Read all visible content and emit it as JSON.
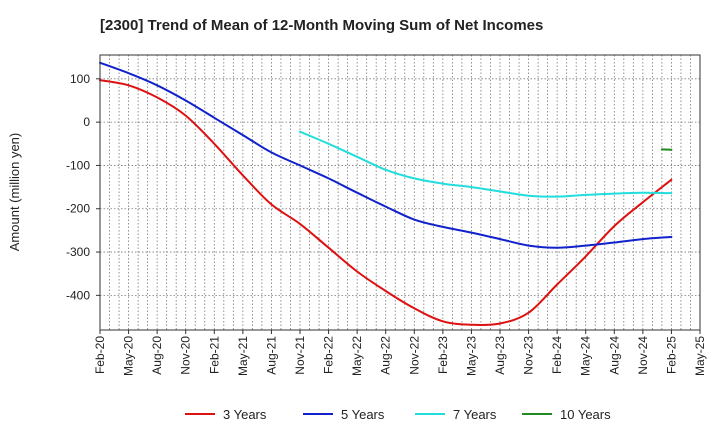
{
  "chart_data": {
    "type": "line",
    "title": "[2300]  Trend of Mean of 12-Month Moving Sum of Net Incomes",
    "xlabel": "",
    "ylabel": "Amount (million yen)",
    "ylim": [
      -480,
      155
    ],
    "yticks": [
      100,
      0,
      -100,
      -200,
      -300,
      -400
    ],
    "ytick_labels": [
      "100",
      "0",
      "-100",
      "-200",
      "-300",
      "-400"
    ],
    "x_tick_labels": [
      "Feb-20",
      "May-20",
      "Aug-20",
      "Nov-20",
      "Feb-21",
      "May-21",
      "Aug-21",
      "Nov-21",
      "Feb-22",
      "May-22",
      "Aug-22",
      "Nov-22",
      "Feb-23",
      "May-23",
      "Aug-23",
      "Nov-23",
      "Feb-24",
      "May-24",
      "Aug-24",
      "Nov-24",
      "Feb-25",
      "May-25"
    ],
    "x_range": [
      0,
      63
    ],
    "grid": true,
    "legend_position": "bottom",
    "series": [
      {
        "name": "3 Years",
        "color": "#dd1111",
        "x": [
          0,
          3,
          6,
          9,
          12,
          15,
          18,
          21,
          24,
          27,
          30,
          33,
          36,
          39,
          42,
          45,
          48,
          51,
          54,
          57,
          60
        ],
        "values": [
          97,
          85,
          57,
          15,
          -50,
          -123,
          -190,
          -235,
          -290,
          -345,
          -390,
          -430,
          -460,
          -468,
          -465,
          -440,
          -375,
          -310,
          -240,
          -185,
          -133
        ]
      },
      {
        "name": "5 Years",
        "color": "#1122cc",
        "x": [
          0,
          3,
          6,
          9,
          12,
          15,
          18,
          21,
          24,
          27,
          30,
          33,
          36,
          39,
          42,
          45,
          48,
          51,
          54,
          57,
          60
        ],
        "values": [
          137,
          113,
          85,
          50,
          10,
          -30,
          -70,
          -100,
          -130,
          -163,
          -195,
          -225,
          -242,
          -255,
          -270,
          -285,
          -290,
          -285,
          -278,
          -270,
          -265
        ]
      },
      {
        "name": "7 Years",
        "color": "#22dddd",
        "x": [
          21,
          24,
          27,
          30,
          33,
          36,
          39,
          42,
          45,
          48,
          51,
          54,
          57,
          60
        ],
        "values": [
          -22,
          -50,
          -80,
          -110,
          -130,
          -142,
          -150,
          -160,
          -170,
          -172,
          -168,
          -165,
          -163,
          -164
        ]
      },
      {
        "name": "10 Years",
        "color": "#228822",
        "x": [
          59,
          60
        ],
        "values": [
          -63,
          -64
        ]
      }
    ]
  }
}
